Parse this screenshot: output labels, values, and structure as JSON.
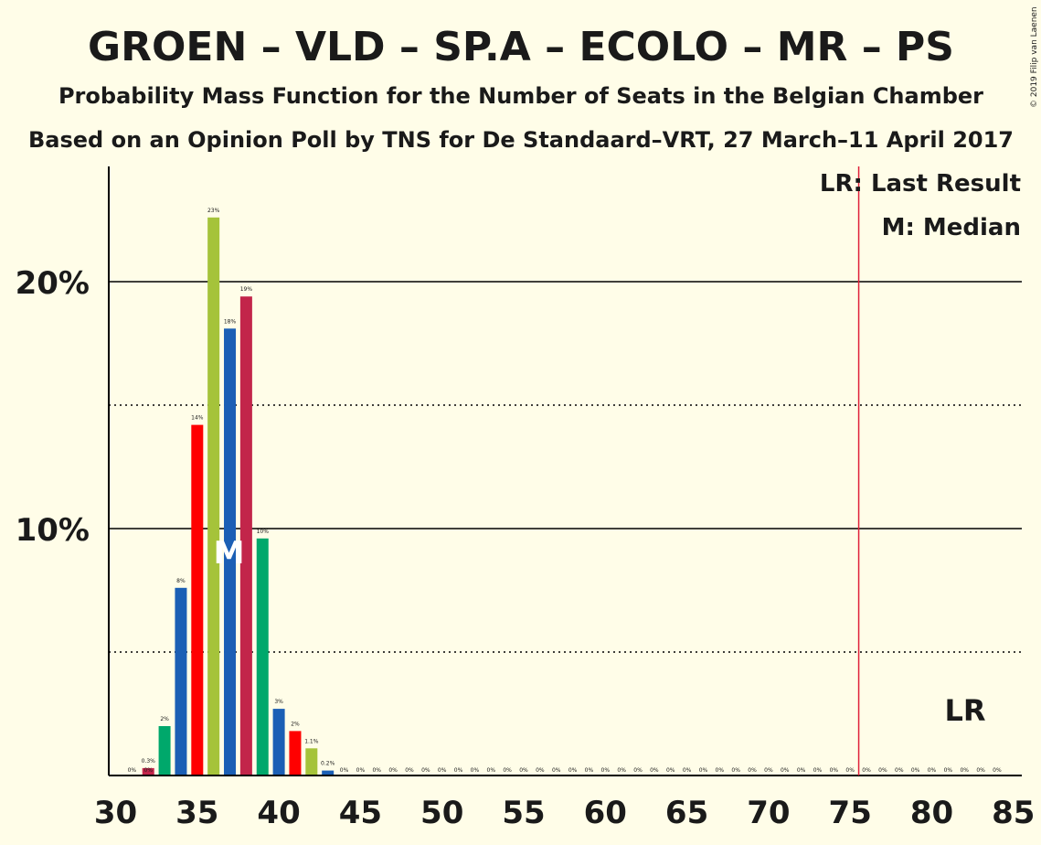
{
  "copyright": "© 2019 Filip van Laenen",
  "legend": {
    "lr": "LR: Last Result",
    "median": "M: Median"
  },
  "chart_data": {
    "type": "bar",
    "title": "GROEN – VLD – SP.A – ECOLO – MR – PS",
    "subtitle": "Probability Mass Function for the Number of Seats in the Belgian Chamber",
    "subtitle2": "Based on an Opinion Poll by TNS for De Standaard–VRT, 27 March–11 April 2017",
    "xlabel": "",
    "ylabel": "",
    "xlim": [
      30,
      85
    ],
    "ylim": [
      0,
      24.5
    ],
    "x_ticks": [
      "30",
      "35",
      "40",
      "45",
      "50",
      "55",
      "60",
      "65",
      "70",
      "75",
      "80",
      "85"
    ],
    "y_ticks": [
      "10%",
      "20%"
    ],
    "median": 37,
    "median_label": "M",
    "last_result": 76,
    "last_result_label": "LR",
    "colors": [
      "#a5c33a",
      "#1b5fb5",
      "#c2254a",
      "#00a86b",
      "#ff0000"
    ],
    "bars": [
      {
        "x": 31,
        "value": 0,
        "label": "0%"
      },
      {
        "x": 32,
        "value": 0,
        "label": "0%"
      },
      {
        "x": 32,
        "value": 0.3,
        "label": "0.3%",
        "color": "#c2254a"
      },
      {
        "x": 33,
        "value": 2,
        "label": "2%",
        "color": "#00a86b"
      },
      {
        "x": 34,
        "value": 7.6,
        "label": "8%",
        "color": "#1b5fb5"
      },
      {
        "x": 35,
        "value": 14.2,
        "label": "14%",
        "color": "#ff0000"
      },
      {
        "x": 36,
        "value": 22.6,
        "label": "23%",
        "color": "#a5c33a"
      },
      {
        "x": 37,
        "value": 18.1,
        "label": "18%",
        "color": "#1b5fb5"
      },
      {
        "x": 38,
        "value": 19.4,
        "label": "19%",
        "color": "#c2254a"
      },
      {
        "x": 39,
        "value": 9.6,
        "label": "10%",
        "color": "#00a86b"
      },
      {
        "x": 40,
        "value": 2.7,
        "label": "3%",
        "color": "#1b5fb5"
      },
      {
        "x": 41,
        "value": 1.8,
        "label": "2%",
        "color": "#ff0000"
      },
      {
        "x": 42,
        "value": 1.1,
        "label": "1.1%",
        "color": "#a5c33a"
      },
      {
        "x": 43,
        "value": 0.2,
        "label": "0.2%",
        "color": "#1b5fb5"
      }
    ],
    "zero_labels_from": 44,
    "zero_labels_to": 84,
    "zero_label": "0%"
  }
}
